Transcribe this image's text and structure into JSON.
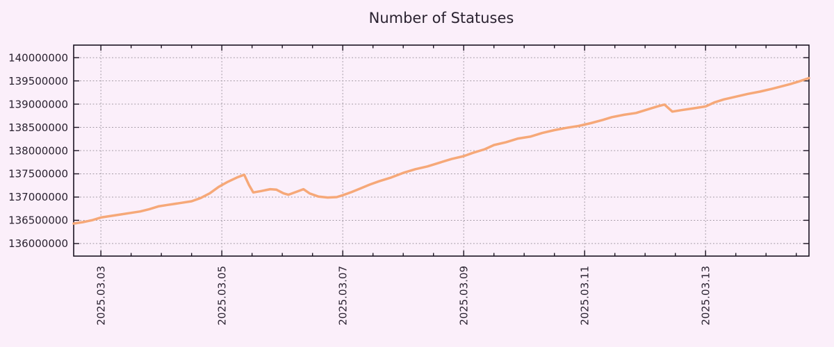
{
  "chart": {
    "title": "Number of Statuses",
    "colors": {
      "background": "#fbeffa",
      "line": "#f6a878",
      "grid": "#9c949e",
      "axis": "#1a1220",
      "text": "#2a2230"
    }
  },
  "chart_data": {
    "type": "line",
    "title": "Number of Statuses",
    "xlabel": "",
    "ylabel": "",
    "legend": "none",
    "grid": "dotted, both axes, at major ticks",
    "x_unit": "days since 2025-03-03 00:00",
    "xlim": [
      -0.45,
      11.71
    ],
    "ylim": [
      135730000,
      140270000
    ],
    "y_ticks": [
      136000000,
      136500000,
      137000000,
      137500000,
      138000000,
      138500000,
      139000000,
      139500000,
      140000000
    ],
    "x_ticks_major": {
      "days": [
        0,
        2,
        4,
        6,
        8,
        10
      ],
      "labels": [
        "2025.03.03",
        "2025.03.05",
        "2025.03.07",
        "2025.03.09",
        "2025.03.11",
        "2025.03.13"
      ]
    },
    "x_minor_tick_step_days": 0.5,
    "series": [
      {
        "name": "Number of Statuses",
        "color": "#f6a878",
        "points": [
          [
            -0.45,
            136430000
          ],
          [
            -0.3,
            136460000
          ],
          [
            -0.15,
            136500000
          ],
          [
            0.0,
            136560000
          ],
          [
            0.15,
            136590000
          ],
          [
            0.3,
            136620000
          ],
          [
            0.5,
            136660000
          ],
          [
            0.65,
            136690000
          ],
          [
            0.8,
            136740000
          ],
          [
            0.95,
            136800000
          ],
          [
            1.1,
            136830000
          ],
          [
            1.3,
            136870000
          ],
          [
            1.5,
            136910000
          ],
          [
            1.65,
            136980000
          ],
          [
            1.8,
            137080000
          ],
          [
            1.95,
            137220000
          ],
          [
            2.1,
            137330000
          ],
          [
            2.25,
            137420000
          ],
          [
            2.37,
            137480000
          ],
          [
            2.45,
            137260000
          ],
          [
            2.52,
            137100000
          ],
          [
            2.65,
            137130000
          ],
          [
            2.8,
            137170000
          ],
          [
            2.9,
            137160000
          ],
          [
            3.02,
            137080000
          ],
          [
            3.1,
            137050000
          ],
          [
            3.25,
            137120000
          ],
          [
            3.35,
            137170000
          ],
          [
            3.45,
            137080000
          ],
          [
            3.6,
            137010000
          ],
          [
            3.75,
            136990000
          ],
          [
            3.9,
            137000000
          ],
          [
            4.0,
            137040000
          ],
          [
            4.15,
            137110000
          ],
          [
            4.3,
            137190000
          ],
          [
            4.45,
            137270000
          ],
          [
            4.6,
            137340000
          ],
          [
            4.8,
            137420000
          ],
          [
            5.0,
            137520000
          ],
          [
            5.2,
            137600000
          ],
          [
            5.4,
            137660000
          ],
          [
            5.6,
            137740000
          ],
          [
            5.8,
            137820000
          ],
          [
            6.0,
            137880000
          ],
          [
            6.15,
            137950000
          ],
          [
            6.35,
            138030000
          ],
          [
            6.5,
            138120000
          ],
          [
            6.7,
            138180000
          ],
          [
            6.9,
            138260000
          ],
          [
            7.1,
            138300000
          ],
          [
            7.3,
            138380000
          ],
          [
            7.5,
            138440000
          ],
          [
            7.7,
            138490000
          ],
          [
            7.9,
            138530000
          ],
          [
            8.1,
            138590000
          ],
          [
            8.3,
            138660000
          ],
          [
            8.45,
            138720000
          ],
          [
            8.65,
            138770000
          ],
          [
            8.85,
            138810000
          ],
          [
            9.05,
            138890000
          ],
          [
            9.2,
            138950000
          ],
          [
            9.32,
            138990000
          ],
          [
            9.45,
            138840000
          ],
          [
            9.6,
            138870000
          ],
          [
            9.8,
            138910000
          ],
          [
            10.0,
            138950000
          ],
          [
            10.15,
            139040000
          ],
          [
            10.3,
            139100000
          ],
          [
            10.5,
            139160000
          ],
          [
            10.7,
            139220000
          ],
          [
            10.9,
            139270000
          ],
          [
            11.1,
            139330000
          ],
          [
            11.25,
            139380000
          ],
          [
            11.4,
            139430000
          ],
          [
            11.55,
            139490000
          ],
          [
            11.71,
            139560000
          ]
        ]
      }
    ]
  }
}
